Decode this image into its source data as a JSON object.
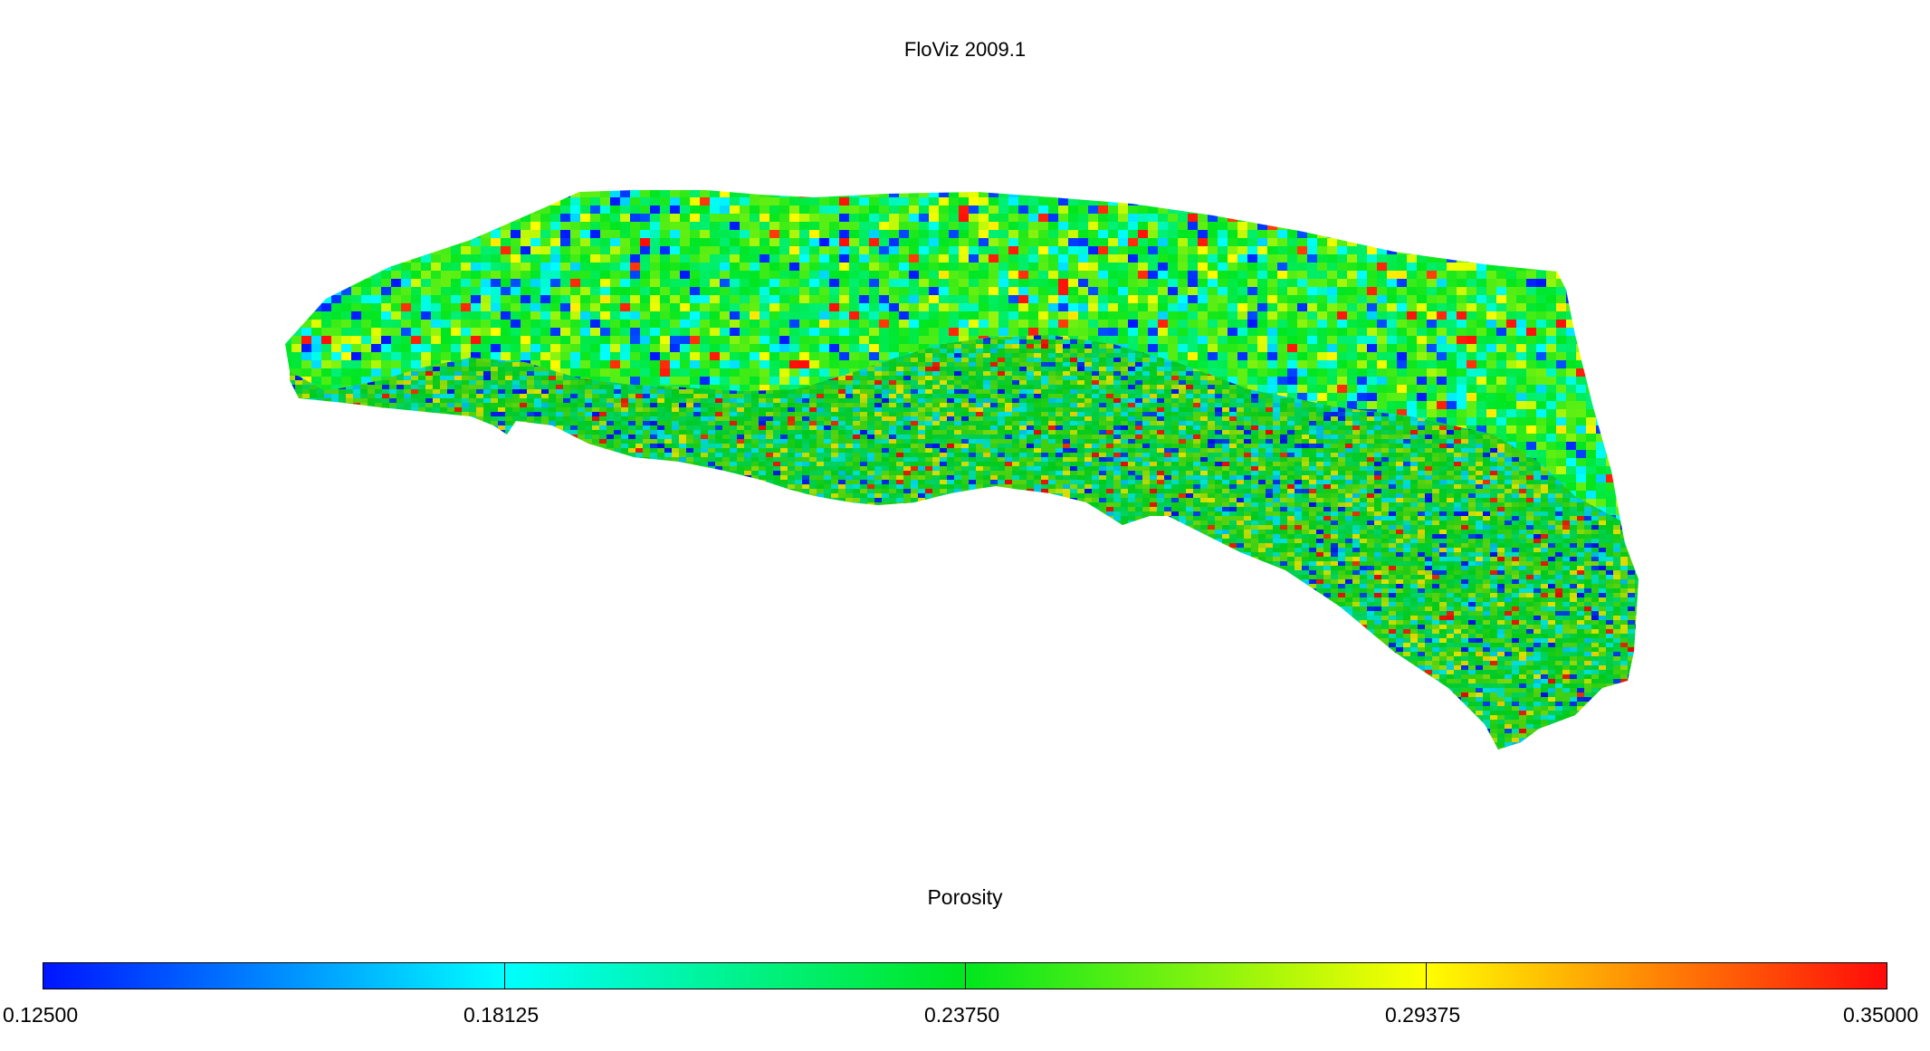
{
  "app": {
    "title": "FloViz 2009.1"
  },
  "viewport": {
    "property": "Porosity"
  },
  "colorbar": {
    "title": "Porosity",
    "min": 0.125,
    "max": 0.35,
    "tick_labels": [
      "0.12500",
      "0.18125",
      "0.23750",
      "0.29375",
      "0.35000"
    ],
    "stops": [
      {
        "value": 0.125,
        "color": "#0014ff"
      },
      {
        "value": 0.18125,
        "color": "#00ffff"
      },
      {
        "value": 0.2375,
        "color": "#00e61e"
      },
      {
        "value": 0.29375,
        "color": "#ffff00"
      },
      {
        "value": 0.35,
        "color": "#ff0a0a"
      }
    ]
  }
}
